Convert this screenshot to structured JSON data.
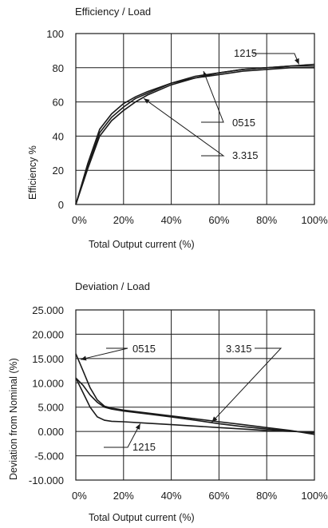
{
  "chart_data": [
    {
      "type": "line",
      "title": "Efficiency / Load",
      "xlabel": "Total Output current (%)",
      "ylabel": "Efficiency %",
      "xlim": [
        0,
        100
      ],
      "ylim": [
        0,
        100
      ],
      "x_ticks": [
        0,
        20,
        40,
        60,
        80,
        100
      ],
      "x_tick_labels": [
        "0%",
        "20%",
        "40%",
        "60%",
        "80%",
        "100%"
      ],
      "y_ticks": [
        0,
        20,
        40,
        60,
        80,
        100
      ],
      "y_tick_labels": [
        "0",
        "20",
        "40",
        "60",
        "80",
        "100"
      ],
      "grid": true,
      "series": [
        {
          "name": "1215",
          "x": [
            0,
            5,
            10,
            15,
            20,
            25,
            30,
            40,
            50,
            60,
            70,
            80,
            90,
            100
          ],
          "values": [
            0,
            22,
            42,
            51,
            57,
            62,
            65,
            71,
            75,
            77,
            79,
            80,
            81,
            82
          ]
        },
        {
          "name": "0515",
          "x": [
            0,
            5,
            10,
            15,
            20,
            25,
            30,
            40,
            50,
            60,
            70,
            80,
            90,
            100
          ],
          "values": [
            0,
            24,
            44,
            53,
            59,
            63,
            66,
            71,
            74,
            76,
            78,
            79,
            80,
            80
          ]
        },
        {
          "name": "3.315",
          "x": [
            0,
            5,
            10,
            15,
            20,
            25,
            30,
            40,
            50,
            60,
            70,
            80,
            90,
            100
          ],
          "values": [
            0,
            21,
            40,
            49,
            55,
            60,
            64,
            70,
            74,
            77,
            79,
            80,
            81,
            81
          ]
        }
      ],
      "annotations": [
        {
          "text": "1215",
          "x": 93.5,
          "y": 82
        },
        {
          "text": "0515",
          "x": 53.5,
          "y": 78
        },
        {
          "text": "3.315",
          "x": 28.5,
          "y": 62
        }
      ]
    },
    {
      "type": "line",
      "title": "Deviation / Load",
      "xlabel": "Total Output current (%)",
      "ylabel": "Deviation from Nominal (%)",
      "xlim": [
        0,
        100
      ],
      "ylim": [
        -10,
        25
      ],
      "x_ticks": [
        0,
        20,
        40,
        60,
        80,
        100
      ],
      "x_tick_labels": [
        "0%",
        "20%",
        "40%",
        "60%",
        "80%",
        "100%"
      ],
      "y_ticks": [
        -10,
        -5,
        0,
        5,
        10,
        15,
        20,
        25
      ],
      "y_tick_labels": [
        "-10.000",
        "-5.000",
        "0.000",
        "5.000",
        "10.000",
        "15.000",
        "20.000",
        "25.000"
      ],
      "grid": true,
      "series": [
        {
          "name": "0515",
          "x": [
            0,
            3,
            6,
            9,
            12,
            15,
            20,
            30,
            40,
            50,
            60,
            70,
            80,
            90,
            100
          ],
          "values": [
            16,
            12.5,
            9,
            6.5,
            5.2,
            4.8,
            4.4,
            3.8,
            3.2,
            2.6,
            2.0,
            1.4,
            0.8,
            0.2,
            -0.6
          ]
        },
        {
          "name": "3.315",
          "x": [
            0,
            3,
            6,
            9,
            12,
            15,
            20,
            30,
            40,
            50,
            60,
            70,
            80,
            90,
            100
          ],
          "values": [
            11,
            9.5,
            7.5,
            6,
            5,
            4.6,
            4.2,
            3.6,
            3.0,
            2.3,
            1.6,
            1.0,
            0.5,
            0.1,
            -0.3
          ]
        },
        {
          "name": "1215",
          "x": [
            0,
            3,
            6,
            9,
            12,
            15,
            20,
            30,
            40,
            50,
            60,
            70,
            80,
            90,
            100
          ],
          "values": [
            11,
            8,
            5,
            3,
            2.3,
            2.1,
            2.0,
            1.7,
            1.4,
            1.1,
            0.8,
            0.5,
            0.2,
            0.0,
            -0.1
          ]
        }
      ],
      "annotations": [
        {
          "text": "0515",
          "x": 2,
          "y": 14.8
        },
        {
          "text": "3.315",
          "x": 57,
          "y": 1.9
        },
        {
          "text": "1215",
          "x": 27,
          "y": 1.6
        }
      ]
    }
  ]
}
